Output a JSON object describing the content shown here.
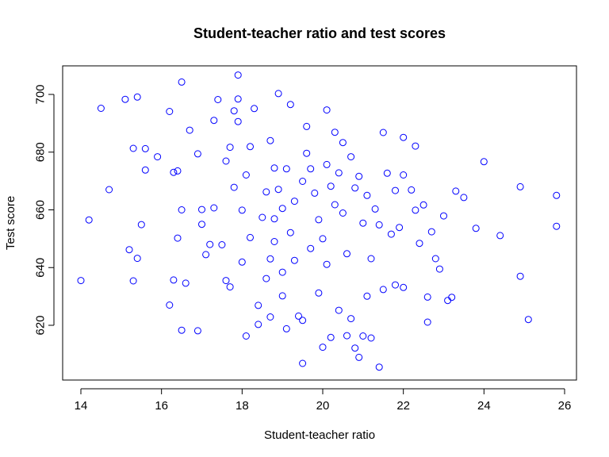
{
  "chart_data": {
    "type": "scatter",
    "title": "Student-teacher ratio and test scores",
    "xlabel": "Student-teacher ratio",
    "ylabel": "Test score",
    "xlim": [
      14,
      26
    ],
    "ylim": [
      605,
      707
    ],
    "xticks": [
      14,
      16,
      18,
      20,
      22,
      24,
      26
    ],
    "yticks": [
      620,
      640,
      660,
      680,
      700
    ],
    "grid": false,
    "legend": "none",
    "marker": "open-circle",
    "point_color": "#0000ff",
    "points": [
      [
        14.0,
        635.5
      ],
      [
        14.2,
        656.5
      ],
      [
        14.5,
        695.2
      ],
      [
        14.7,
        667.0
      ],
      [
        15.1,
        698.3
      ],
      [
        15.2,
        646.2
      ],
      [
        15.3,
        635.4
      ],
      [
        15.3,
        681.3
      ],
      [
        15.4,
        699.1
      ],
      [
        15.4,
        643.2
      ],
      [
        15.5,
        654.9
      ],
      [
        15.6,
        673.8
      ],
      [
        15.6,
        681.2
      ],
      [
        15.9,
        678.4
      ],
      [
        16.2,
        627.0
      ],
      [
        16.2,
        694.1
      ],
      [
        16.3,
        635.7
      ],
      [
        16.3,
        673.0
      ],
      [
        16.4,
        650.2
      ],
      [
        16.4,
        673.5
      ],
      [
        16.5,
        704.3
      ],
      [
        16.5,
        618.3
      ],
      [
        16.5,
        660.0
      ],
      [
        16.6,
        634.6
      ],
      [
        16.7,
        687.6
      ],
      [
        16.9,
        679.4
      ],
      [
        16.9,
        618.1
      ],
      [
        17.0,
        660.1
      ],
      [
        17.0,
        655.0
      ],
      [
        17.1,
        644.5
      ],
      [
        17.2,
        648.0
      ],
      [
        17.3,
        660.7
      ],
      [
        17.3,
        691.0
      ],
      [
        17.4,
        698.2
      ],
      [
        17.5,
        647.9
      ],
      [
        17.6,
        676.9
      ],
      [
        17.6,
        635.5
      ],
      [
        17.7,
        633.3
      ],
      [
        17.7,
        681.7
      ],
      [
        17.8,
        667.8
      ],
      [
        17.8,
        694.3
      ],
      [
        17.9,
        698.4
      ],
      [
        17.9,
        706.7
      ],
      [
        17.9,
        690.6
      ],
      [
        18.0,
        641.9
      ],
      [
        18.0,
        659.9
      ],
      [
        18.1,
        616.3
      ],
      [
        18.1,
        672.1
      ],
      [
        18.2,
        681.9
      ],
      [
        18.2,
        650.4
      ],
      [
        18.3,
        695.1
      ],
      [
        18.4,
        626.9
      ],
      [
        18.4,
        620.3
      ],
      [
        18.5,
        657.4
      ],
      [
        18.6,
        636.2
      ],
      [
        18.6,
        666.2
      ],
      [
        18.7,
        622.9
      ],
      [
        18.7,
        684.0
      ],
      [
        18.7,
        643.0
      ],
      [
        18.8,
        674.5
      ],
      [
        18.8,
        656.9
      ],
      [
        18.8,
        649.0
      ],
      [
        18.9,
        700.3
      ],
      [
        18.9,
        667.1
      ],
      [
        19.0,
        638.4
      ],
      [
        19.0,
        660.5
      ],
      [
        19.0,
        630.2
      ],
      [
        19.1,
        674.2
      ],
      [
        19.1,
        618.8
      ],
      [
        19.2,
        696.5
      ],
      [
        19.2,
        652.1
      ],
      [
        19.3,
        663.0
      ],
      [
        19.3,
        642.5
      ],
      [
        19.4,
        623.2
      ],
      [
        19.5,
        621.7
      ],
      [
        19.5,
        606.8
      ],
      [
        19.5,
        669.9
      ],
      [
        19.6,
        688.9
      ],
      [
        19.6,
        679.6
      ],
      [
        19.7,
        646.6
      ],
      [
        19.7,
        674.2
      ],
      [
        19.8,
        665.8
      ],
      [
        19.9,
        631.2
      ],
      [
        19.9,
        656.6
      ],
      [
        20.0,
        612.4
      ],
      [
        20.0,
        650.0
      ],
      [
        20.1,
        675.7
      ],
      [
        20.1,
        694.6
      ],
      [
        20.1,
        641.1
      ],
      [
        20.2,
        615.8
      ],
      [
        20.2,
        668.2
      ],
      [
        20.3,
        686.9
      ],
      [
        20.3,
        661.8
      ],
      [
        20.4,
        625.2
      ],
      [
        20.4,
        672.8
      ],
      [
        20.5,
        683.3
      ],
      [
        20.5,
        658.9
      ],
      [
        20.6,
        616.4
      ],
      [
        20.6,
        644.8
      ],
      [
        20.7,
        622.3
      ],
      [
        20.7,
        678.4
      ],
      [
        20.8,
        667.6
      ],
      [
        20.8,
        612.1
      ],
      [
        20.9,
        608.9
      ],
      [
        20.9,
        671.6
      ],
      [
        21.0,
        616.3
      ],
      [
        21.0,
        655.4
      ],
      [
        21.1,
        630.1
      ],
      [
        21.1,
        665.0
      ],
      [
        21.2,
        615.6
      ],
      [
        21.2,
        643.1
      ],
      [
        21.3,
        660.3
      ],
      [
        21.4,
        605.5
      ],
      [
        21.4,
        654.8
      ],
      [
        21.5,
        686.8
      ],
      [
        21.5,
        632.4
      ],
      [
        21.6,
        672.7
      ],
      [
        21.7,
        651.6
      ],
      [
        21.8,
        634.0
      ],
      [
        21.8,
        666.7
      ],
      [
        21.9,
        653.9
      ],
      [
        22.0,
        685.1
      ],
      [
        22.0,
        672.1
      ],
      [
        22.0,
        633.1
      ],
      [
        22.2,
        666.9
      ],
      [
        22.3,
        682.1
      ],
      [
        22.3,
        659.9
      ],
      [
        22.4,
        648.4
      ],
      [
        22.5,
        661.7
      ],
      [
        22.6,
        629.8
      ],
      [
        22.6,
        621.1
      ],
      [
        22.7,
        652.4
      ],
      [
        22.8,
        643.1
      ],
      [
        22.9,
        639.5
      ],
      [
        23.0,
        657.9
      ],
      [
        23.1,
        628.6
      ],
      [
        23.2,
        629.7
      ],
      [
        23.3,
        666.5
      ],
      [
        23.5,
        664.3
      ],
      [
        23.8,
        653.6
      ],
      [
        24.0,
        676.7
      ],
      [
        24.4,
        651.1
      ],
      [
        24.9,
        668.0
      ],
      [
        24.9,
        637.0
      ],
      [
        25.1,
        622.0
      ],
      [
        25.8,
        665.0
      ],
      [
        25.8,
        654.3
      ]
    ]
  }
}
